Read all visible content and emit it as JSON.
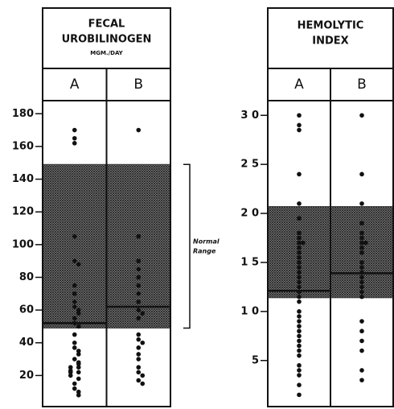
{
  "chart_data": [
    {
      "type": "strip",
      "title": [
        "FECAL",
        "UROBILINOGEN"
      ],
      "subtitle": "MGM./DAY",
      "categories": [
        "A",
        "B"
      ],
      "values": [
        [
          170,
          165,
          162,
          105,
          90,
          88,
          75,
          70,
          65,
          62,
          60,
          58,
          55,
          52,
          50,
          45,
          40,
          37,
          35,
          33,
          30,
          28,
          27,
          25,
          25,
          23,
          22,
          22,
          20,
          18,
          15,
          12,
          10,
          8
        ],
        [
          170,
          105,
          90,
          85,
          80,
          75,
          70,
          65,
          60,
          58,
          55,
          45,
          42,
          40,
          37,
          33,
          30,
          25,
          22,
          20,
          17,
          15
        ]
      ],
      "medians": [
        52,
        62
      ],
      "normal_range": [
        49,
        149
      ],
      "annotation": [
        "Normal",
        "Range"
      ],
      "color": "#111111",
      "band_color": "#3a3a3a",
      "ylim": [
        1,
        188
      ],
      "yticks": [
        20,
        40,
        60,
        80,
        100,
        120,
        140,
        160,
        180
      ]
    },
    {
      "type": "strip",
      "title": [
        "HEMOLYTIC",
        "INDEX"
      ],
      "categories": [
        "A",
        "B"
      ],
      "values": [
        [
          30,
          29,
          28.5,
          24,
          21,
          19.5,
          18,
          17.5,
          17,
          17,
          16.5,
          16,
          15.5,
          15,
          14.5,
          14,
          13.5,
          13,
          12.5,
          12,
          11.5,
          11,
          10,
          9.5,
          9,
          8.5,
          8,
          7.5,
          7,
          6.5,
          6,
          5.5,
          4.5,
          4,
          3.5,
          2.5,
          1.5
        ],
        [
          30,
          24,
          21,
          19,
          18,
          17.5,
          17,
          17,
          16.5,
          16,
          15,
          14.5,
          14,
          13.5,
          13,
          12.5,
          12,
          11.5,
          9,
          8,
          7,
          6,
          4,
          3
        ]
      ],
      "medians": [
        12.1,
        13.9
      ],
      "normal_range": [
        11.4,
        20.7
      ],
      "color": "#111111",
      "band_color": "#3a3a3a",
      "ylim": [
        0.3,
        31.5
      ],
      "yticks": [
        {
          "value": 5,
          "label": "5"
        },
        {
          "value": 10,
          "label": "1 0"
        },
        {
          "value": 15,
          "label": "1 5"
        },
        {
          "value": 20,
          "label": "2 0"
        },
        {
          "value": 25,
          "label": "2 5"
        },
        {
          "value": 30,
          "label": "3 0"
        }
      ]
    }
  ]
}
